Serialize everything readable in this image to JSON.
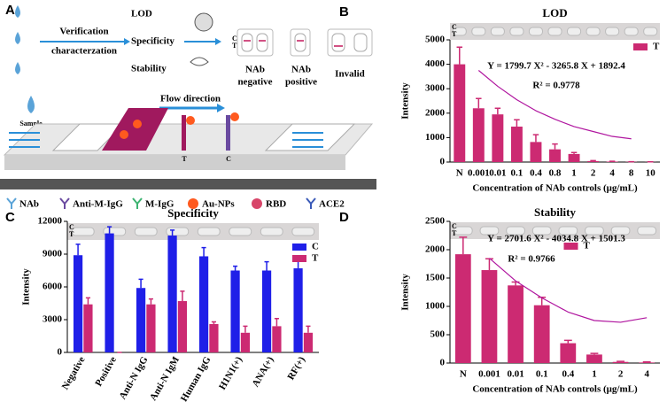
{
  "diagram": {
    "panel": "A",
    "methods": [
      "LOD",
      "Specificity",
      "Stability"
    ],
    "arrow_label": [
      "Verification",
      "characterzation"
    ],
    "sample": "Sample",
    "cassette_lines": [
      "C",
      "T"
    ],
    "results": [
      [
        "NAb",
        "negative"
      ],
      [
        "NAb",
        "positive"
      ],
      [
        "Invalid"
      ]
    ],
    "flow": "Flow direction",
    "strip_lines": [
      "T",
      "C"
    ],
    "legend": [
      "NAb",
      "Anti-M-IgG",
      "M-IgG",
      "Au-NPs",
      "RBD",
      "ACE2"
    ]
  },
  "chart_data": [
    {
      "type": "bar",
      "panel": "B",
      "title": "LOD",
      "categories": [
        "N",
        "0.001",
        "0.01",
        "0.1",
        "0.4",
        "0.8",
        "1",
        "2",
        "4",
        "8",
        "10"
      ],
      "series": [
        {
          "name": "T",
          "color": "#cc2a72",
          "values": [
            4000,
            2200,
            1950,
            1450,
            820,
            520,
            330,
            40,
            20,
            10,
            5
          ],
          "errors": [
            700,
            400,
            250,
            280,
            300,
            220,
            60,
            20,
            10,
            5,
            5
          ]
        }
      ],
      "fit": {
        "color": "#b0169f",
        "values": [
          null,
          3750,
          3100,
          2550,
          2100,
          1750,
          1450,
          1250,
          1050,
          950,
          null
        ]
      },
      "annotations": [
        "Y = 1799.7 X² - 3265.8 X + 1892.4",
        "R² = 0.9778"
      ],
      "strip_labels": [
        "C",
        "T"
      ],
      "x_label": "Concentration of NAb controls (μg/mL)",
      "y_label": "Intensity",
      "ylim": [
        0,
        5000
      ],
      "yticks": [
        0,
        1000,
        2000,
        3000,
        4000,
        5000
      ],
      "legend": "upper right"
    },
    {
      "type": "bar",
      "panel": "C",
      "title": "Specificity",
      "categories": [
        "Negative",
        "Positive",
        "Anti-N IgG",
        "Anti-N IgM",
        "Human IgG",
        "H1N1(+)",
        "ANA(+)",
        "RF(+)"
      ],
      "series": [
        {
          "name": "C",
          "color": "#1f1fe8",
          "values": [
            8900,
            10900,
            5900,
            10700,
            8800,
            7500,
            7500,
            7700
          ],
          "errors": [
            1000,
            600,
            800,
            500,
            800,
            400,
            800,
            700
          ]
        },
        {
          "name": "T",
          "color": "#cc2a72",
          "values": [
            4400,
            0,
            4400,
            4700,
            2600,
            1800,
            2400,
            1800
          ],
          "errors": [
            600,
            0,
            500,
            900,
            200,
            600,
            700,
            600
          ]
        }
      ],
      "strip_labels": [
        "C",
        "T"
      ],
      "y_label": "Intensity",
      "ylim": [
        0,
        12000
      ],
      "yticks": [
        0,
        3000,
        6000,
        9000,
        12000
      ],
      "legend": "upper right"
    },
    {
      "type": "bar",
      "panel": "D",
      "title": "Stability",
      "categories": [
        "N",
        "0.001",
        "0.01",
        "0.1",
        "0.4",
        "1",
        "2",
        "4"
      ],
      "series": [
        {
          "name": "T",
          "color": "#cc2a72",
          "values": [
            1920,
            1640,
            1370,
            1020,
            350,
            150,
            20,
            10
          ],
          "errors": [
            300,
            200,
            60,
            140,
            50,
            20,
            10,
            10
          ]
        }
      ],
      "fit": {
        "color": "#b0169f",
        "values": [
          null,
          1850,
          1450,
          1150,
          900,
          750,
          720,
          800
        ]
      },
      "annotations": [
        "Y = 2701.6 X² - 4034.8 X + 1501.3",
        "R² = 0.9766"
      ],
      "strip_labels": [
        "C",
        "T"
      ],
      "x_label": "Concentration of NAb controls (μg/mL)",
      "y_label": "Intensity",
      "ylim": [
        0,
        2500
      ],
      "yticks": [
        0,
        500,
        1000,
        1500,
        2000,
        2500
      ],
      "legend": "upper center"
    }
  ]
}
